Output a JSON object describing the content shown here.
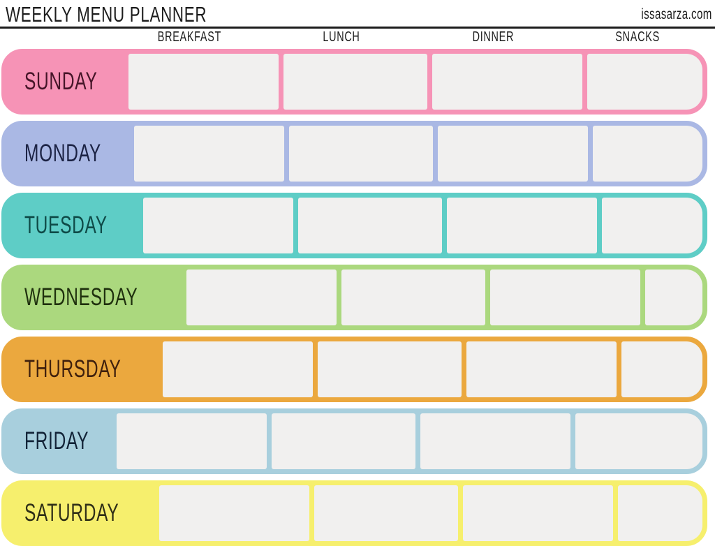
{
  "header": {
    "title": "Weekly Menu Planner",
    "site": "issasarza.com"
  },
  "columns": [
    "Breakfast",
    "Lunch",
    "Dinner",
    "Snacks"
  ],
  "days": [
    {
      "label": "Sunday",
      "color": "#F693B6",
      "text_color": "#451528",
      "cells": [
        "",
        "",
        "",
        ""
      ]
    },
    {
      "label": "Monday",
      "color": "#AAB8E4",
      "text_color": "#1B2243",
      "cells": [
        "",
        "",
        "",
        ""
      ]
    },
    {
      "label": "Tuesday",
      "color": "#5ECDC6",
      "text_color": "#0E4A47",
      "cells": [
        "",
        "",
        "",
        ""
      ]
    },
    {
      "label": "Wednesday",
      "color": "#ABD87E",
      "text_color": "#1F300E",
      "cells": [
        "",
        "",
        "",
        ""
      ]
    },
    {
      "label": "Thursday",
      "color": "#EBA83E",
      "text_color": "#3F200D",
      "cells": [
        "",
        "",
        "",
        ""
      ]
    },
    {
      "label": "Friday",
      "color": "#A8CFDD",
      "text_color": "#122337",
      "cells": [
        "",
        "",
        "",
        ""
      ]
    },
    {
      "label": "Saturday",
      "color": "#F6EF6D",
      "text_color": "#2F2F17",
      "cells": [
        "",
        "",
        "",
        ""
      ]
    }
  ],
  "colors": {
    "cell_bg": "#F1F0EF",
    "ink": "#1C1C1C"
  }
}
